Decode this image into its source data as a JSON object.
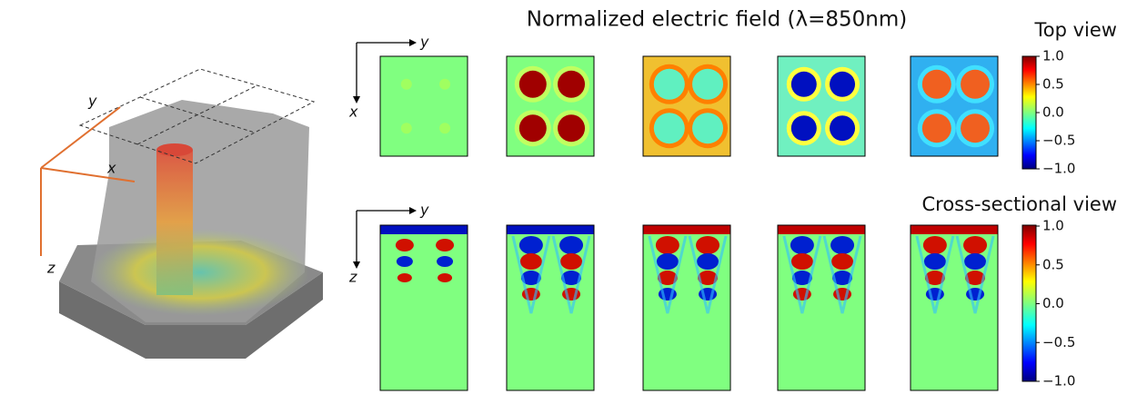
{
  "title": "Normalized electric field (λ=850nm)",
  "diagram": {
    "labels": [
      "y",
      "x",
      "z"
    ]
  },
  "top_view": {
    "label": "Top view",
    "axis_h": "y",
    "axis_v": "x",
    "colorbar_ticks": [
      {
        "value": 1.0,
        "label": "1.0"
      },
      {
        "value": 0.5,
        "label": "0.5"
      },
      {
        "value": 0.0,
        "label": "0.0"
      },
      {
        "value": -0.5,
        "label": "−0.5"
      },
      {
        "value": -1.0,
        "label": "−1.0"
      }
    ]
  },
  "cross_section": {
    "label": "Cross-sectional view",
    "axis_h": "y",
    "axis_v": "z",
    "colorbar_ticks": [
      {
        "value": 1.0,
        "label": "1.0"
      },
      {
        "value": 0.5,
        "label": "0.5"
      },
      {
        "value": 0.0,
        "label": "0.0"
      },
      {
        "value": -0.5,
        "label": "−0.5"
      },
      {
        "value": -1.0,
        "label": "−1.0"
      }
    ]
  }
}
